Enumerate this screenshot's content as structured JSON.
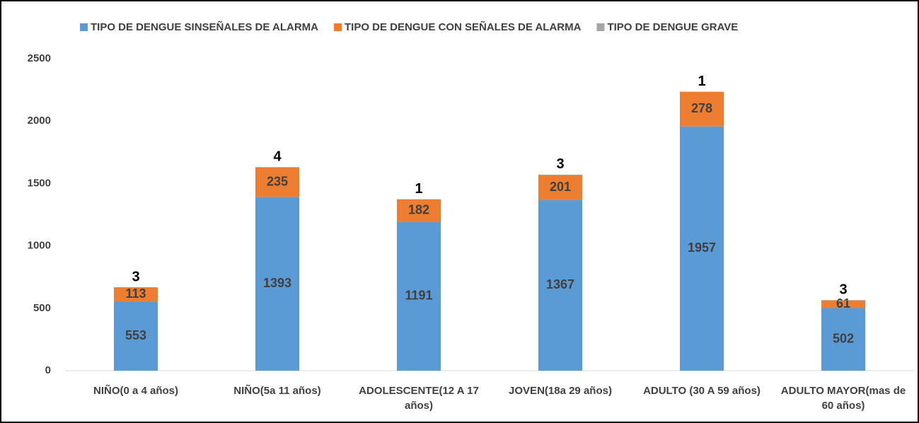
{
  "chart_data": {
    "type": "stacked_bar",
    "categories": [
      "NIÑO(0 a 4 años)",
      "NIÑO(5a 11 años)",
      "ADOLESCENTE(12 A 17 años)",
      "JOVEN(18a 29 años)",
      "ADULTO (30 A 59 años)",
      "ADULTO MAYOR(mas de 60 años)"
    ],
    "series": [
      {
        "name": "TIPO DE DENGUE SINSEÑALES DE ALARMA",
        "color": "#5b9bd5",
        "values": [
          553,
          1393,
          1191,
          1367,
          1957,
          502
        ]
      },
      {
        "name": "TIPO DE DENGUE CON SEÑALES DE ALARMA",
        "color": "#ed7d31",
        "values": [
          113,
          235,
          182,
          201,
          278,
          61
        ]
      },
      {
        "name": "TIPO DE DENGUE GRAVE",
        "color": "#a5a5a5",
        "values": [
          3,
          4,
          1,
          3,
          1,
          3
        ]
      }
    ],
    "ylim": [
      0,
      2500
    ],
    "yticks": [
      0,
      500,
      1000,
      1500,
      2000,
      2500
    ],
    "grid": false,
    "legend": "top"
  }
}
